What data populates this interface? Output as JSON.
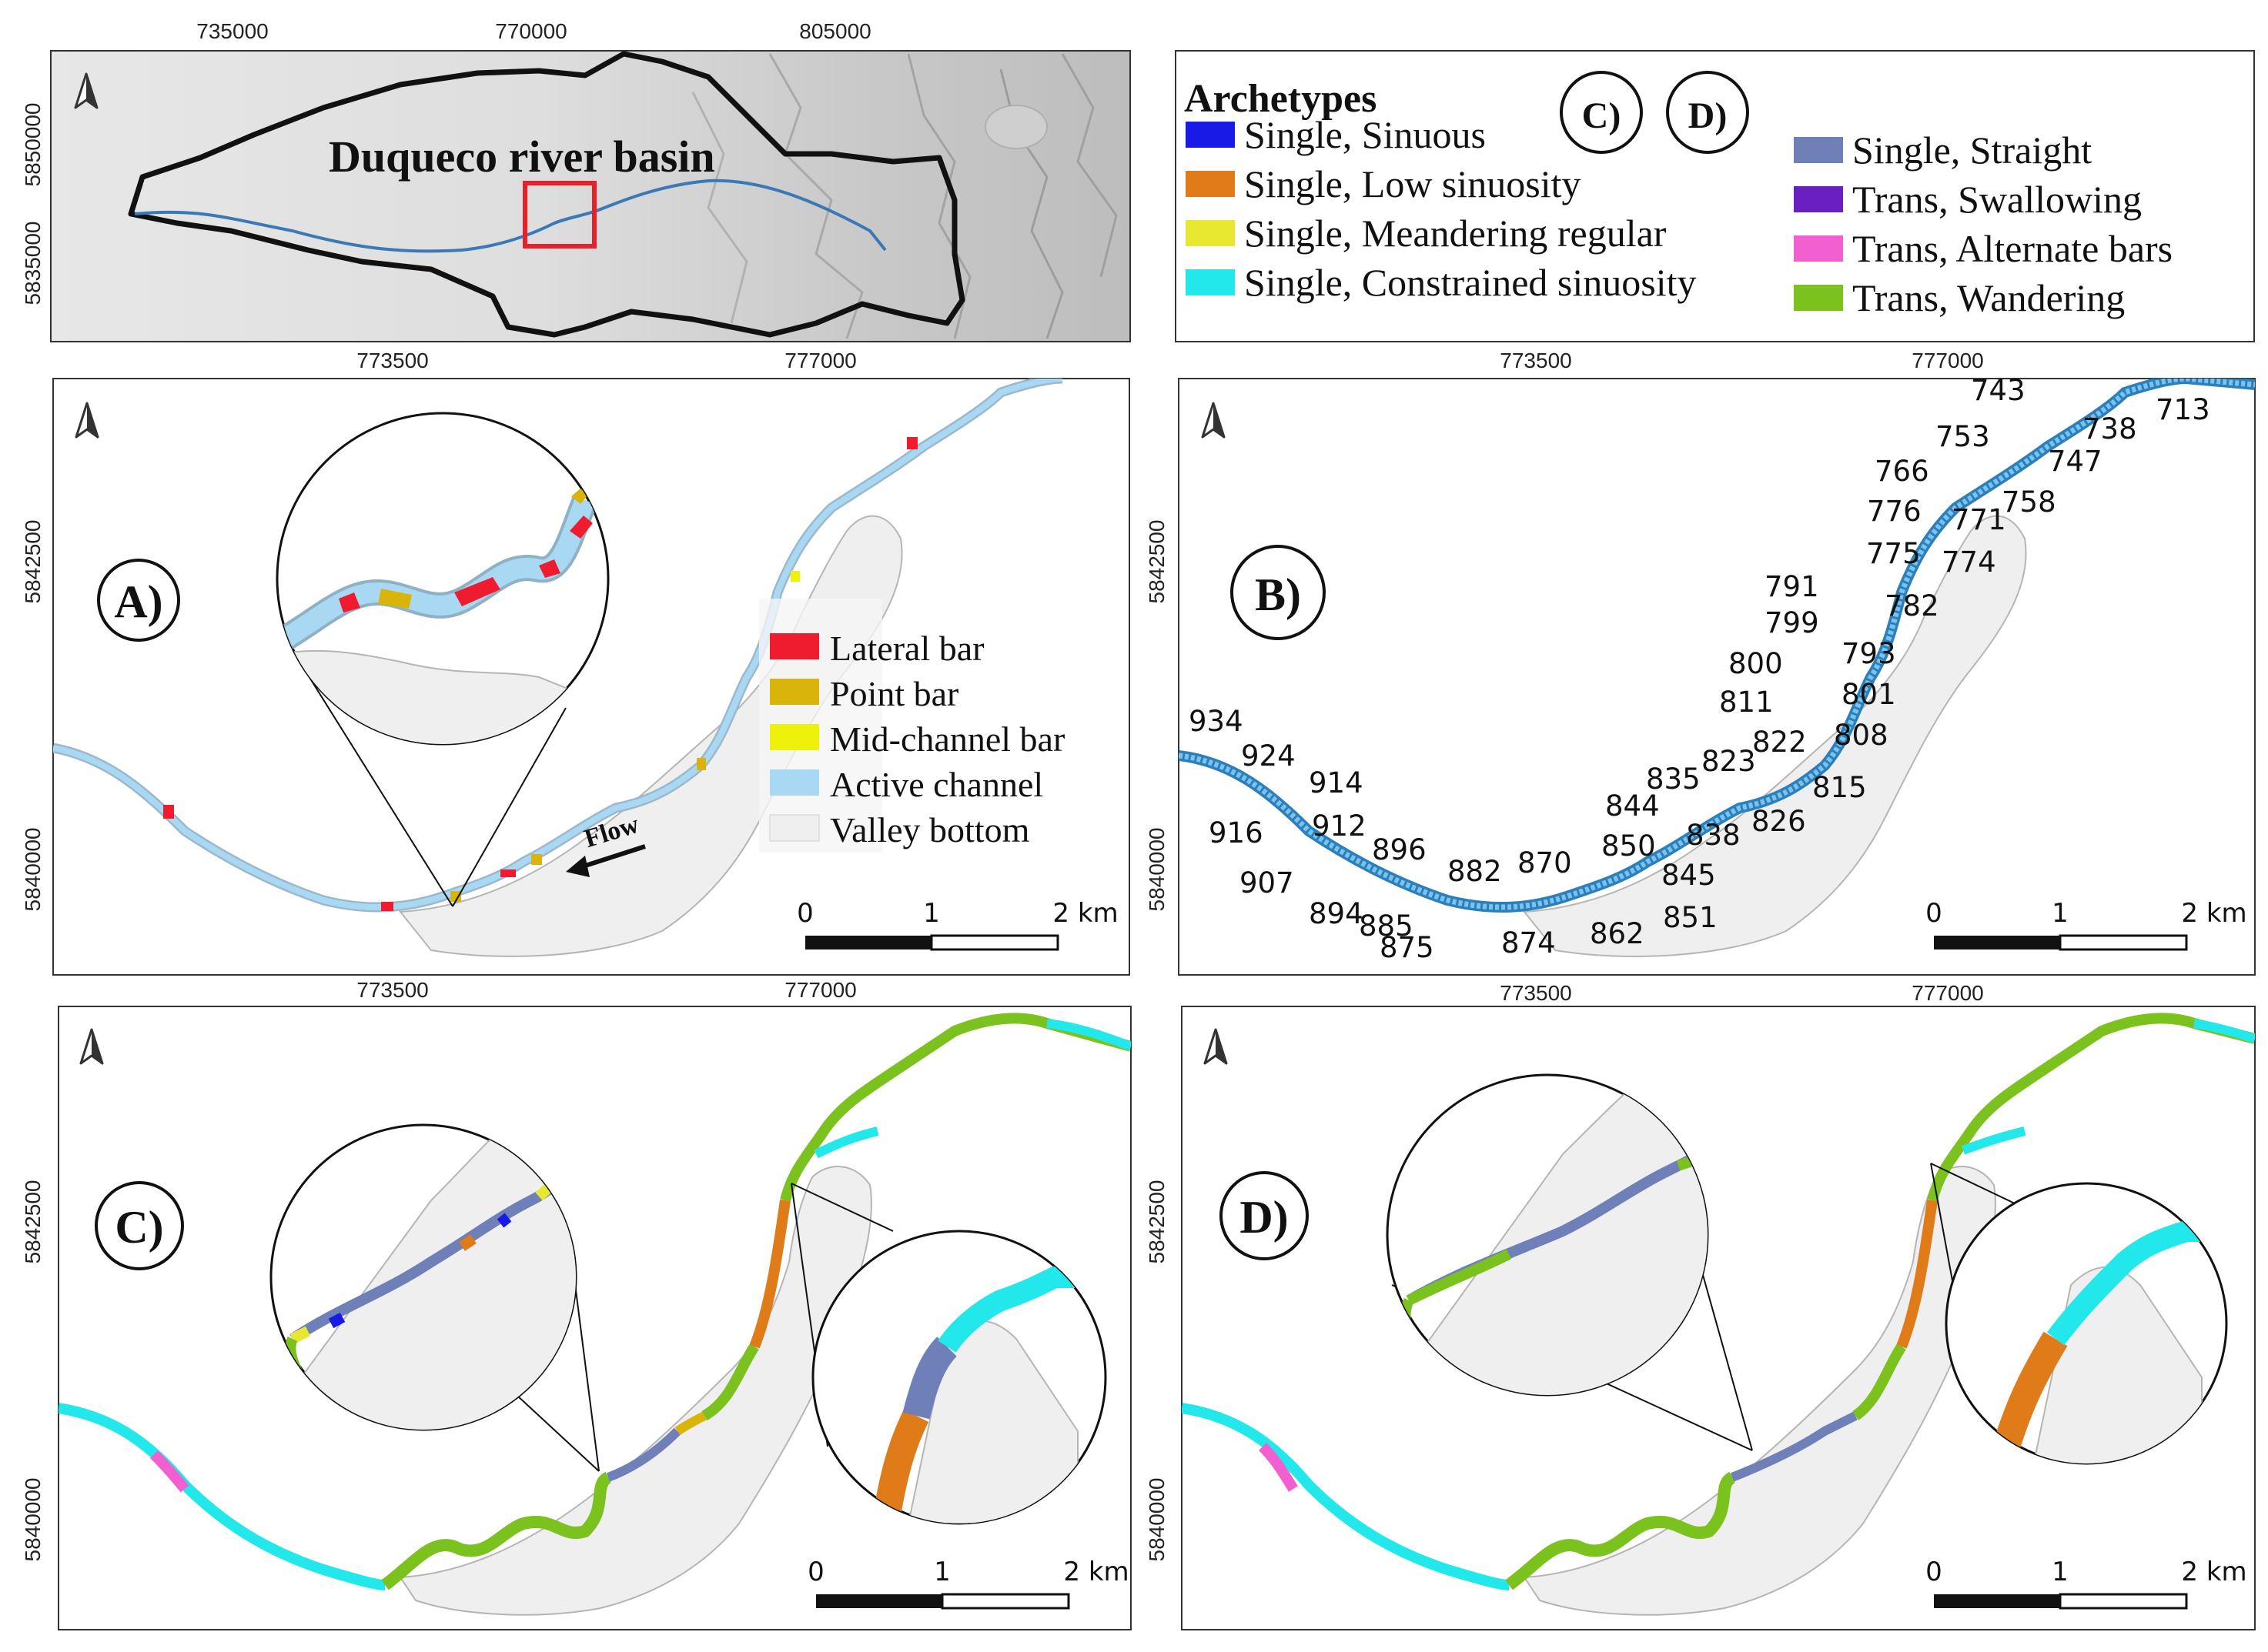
{
  "overview": {
    "title": "Duqueco river basin",
    "x_ticks": [
      "735000",
      "770000",
      "805000"
    ],
    "y_ticks": [
      "5850000",
      "5835000"
    ]
  },
  "legend_archetypes": {
    "title": "Archetypes",
    "panels": [
      "C)",
      "D)"
    ],
    "items": [
      {
        "label": "Single, Sinuous",
        "color": "#1a1ae6"
      },
      {
        "label": "Single, Low sinuosity",
        "color": "#e07b1a"
      },
      {
        "label": "Single, Meandering regular",
        "color": "#e8e830"
      },
      {
        "label": "Single, Constrained sinuosity",
        "color": "#22e8ec"
      },
      {
        "label": "Single, Straight",
        "color": "#6f80b8"
      },
      {
        "label": "Trans, Swallowing",
        "color": "#6a1fc0"
      },
      {
        "label": "Trans, Alternate bars",
        "color": "#f25fd0"
      },
      {
        "label": "Trans, Wandering",
        "color": "#7cc21e"
      }
    ]
  },
  "panel_a": {
    "label": "A)",
    "x_ticks": [
      "773500",
      "777000"
    ],
    "y_ticks": [
      "5842500",
      "5840000"
    ],
    "flow_label": "Flow",
    "legend": [
      {
        "label": "Lateral bar",
        "color": "#ee1c2e"
      },
      {
        "label": "Point bar",
        "color": "#d9b40a"
      },
      {
        "label": "Mid-channel bar",
        "color": "#eef20a"
      },
      {
        "label": "Active channel",
        "color": "#a9d8f3"
      },
      {
        "label": "Valley bottom",
        "color": "#efefef"
      }
    ],
    "scale": [
      "0",
      "1",
      "2 km"
    ]
  },
  "panel_b": {
    "label": "B)",
    "x_ticks": [
      "773500",
      "777000"
    ],
    "y_ticks": [
      "5842500",
      "5840000"
    ],
    "scale": [
      "0",
      "1",
      "2 km"
    ],
    "reach_ids": [
      "743",
      "713",
      "738",
      "753",
      "747",
      "766",
      "758",
      "776",
      "771",
      "775",
      "774",
      "791",
      "782",
      "799",
      "793",
      "800",
      "801",
      "811",
      "808",
      "822",
      "823",
      "835",
      "815",
      "826",
      "844",
      "838",
      "850",
      "845",
      "870",
      "882",
      "851",
      "862",
      "874",
      "875",
      "885",
      "894",
      "907",
      "896",
      "912",
      "916",
      "914",
      "924",
      "934"
    ]
  },
  "panel_c": {
    "label": "C)",
    "x_ticks": [
      "773500",
      "777000"
    ],
    "y_ticks": [
      "5842500",
      "5840000"
    ],
    "scale": [
      "0",
      "1",
      "2 km"
    ]
  },
  "panel_d": {
    "label": "D)",
    "x_ticks": [
      "773500",
      "777000"
    ],
    "y_ticks": [
      "5842500",
      "5840000"
    ],
    "scale": [
      "0",
      "1",
      "2 km"
    ]
  },
  "colors": {
    "panel_border": "#333333",
    "valley": "#efefef",
    "channel": "#a9d8f3",
    "channel_b": "#3f9fd6",
    "hillshade": "#d9d9d9",
    "study_box": "#e8202a"
  }
}
